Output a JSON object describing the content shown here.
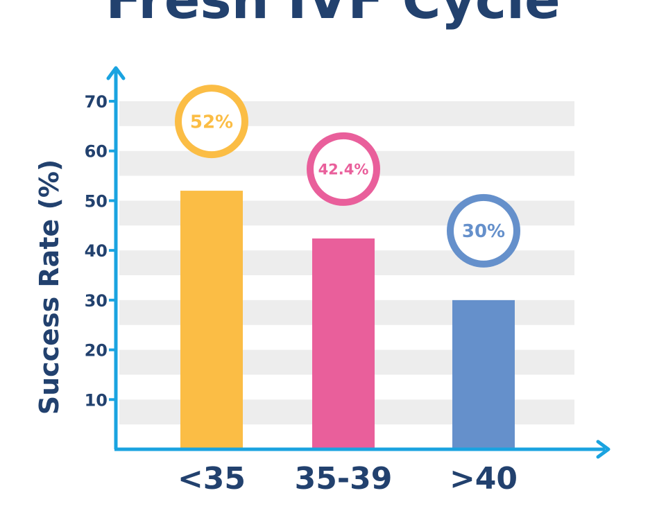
{
  "title": "Fresh IVF Cycle",
  "colors": {
    "text": "#22416e",
    "axis": "#1aa3e0",
    "band": "#ededed"
  },
  "chart_data": {
    "type": "bar",
    "categories": [
      "<35",
      "35-39",
      ">40"
    ],
    "values": [
      52,
      42.4,
      30
    ],
    "data_labels": [
      "52%",
      "42.4%",
      "30%"
    ],
    "bar_colors": [
      "#fbbd45",
      "#e95f9b",
      "#6590cb"
    ],
    "title": "Fresh IVF Cycle",
    "xlabel": "",
    "ylabel": "Success Rate (%)",
    "ylim": [
      0,
      70
    ],
    "yticks": [
      10,
      20,
      30,
      40,
      50,
      60,
      70
    ],
    "grid": true,
    "legend": "none"
  }
}
